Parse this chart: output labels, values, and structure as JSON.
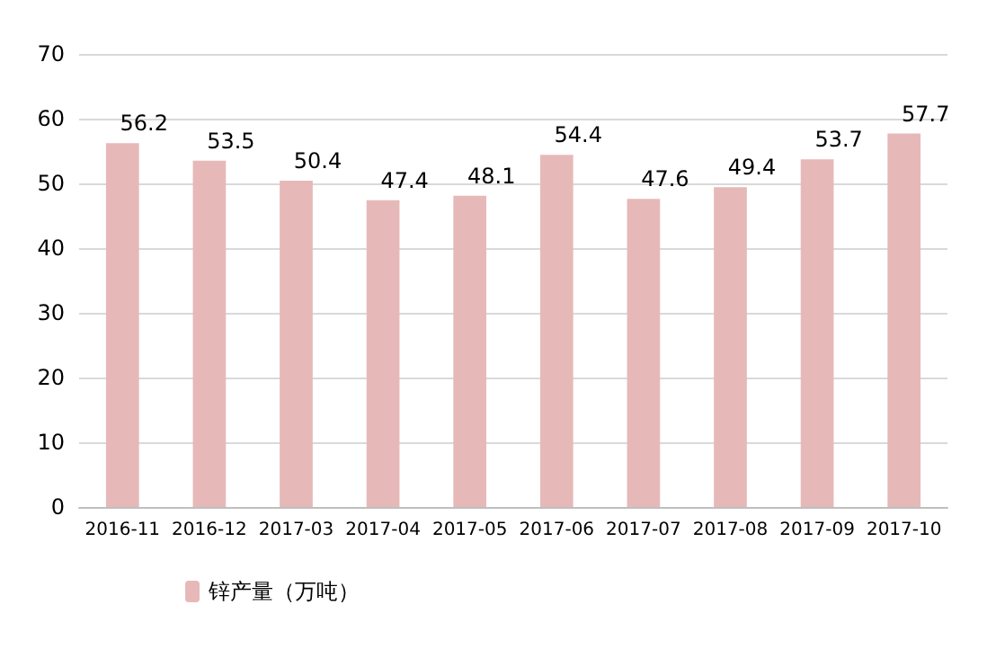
{
  "chart_data": {
    "type": "bar",
    "categories": [
      "2016-11",
      "2016-12",
      "2017-03",
      "2017-04",
      "2017-05",
      "2017-06",
      "2017-07",
      "2017-08",
      "2017-09",
      "2017-10"
    ],
    "series": [
      {
        "name": "锌产量（万吨）",
        "color": "#e6b9b8",
        "values": [
          56.2,
          53.5,
          50.4,
          47.4,
          48.1,
          54.4,
          47.6,
          49.4,
          53.7,
          57.7
        ]
      }
    ],
    "ylim": [
      0,
      70
    ],
    "yticks": [
      0,
      10,
      20,
      30,
      40,
      50,
      60,
      70
    ],
    "grid": "y",
    "legend": "bottom left",
    "data_labels": true
  }
}
